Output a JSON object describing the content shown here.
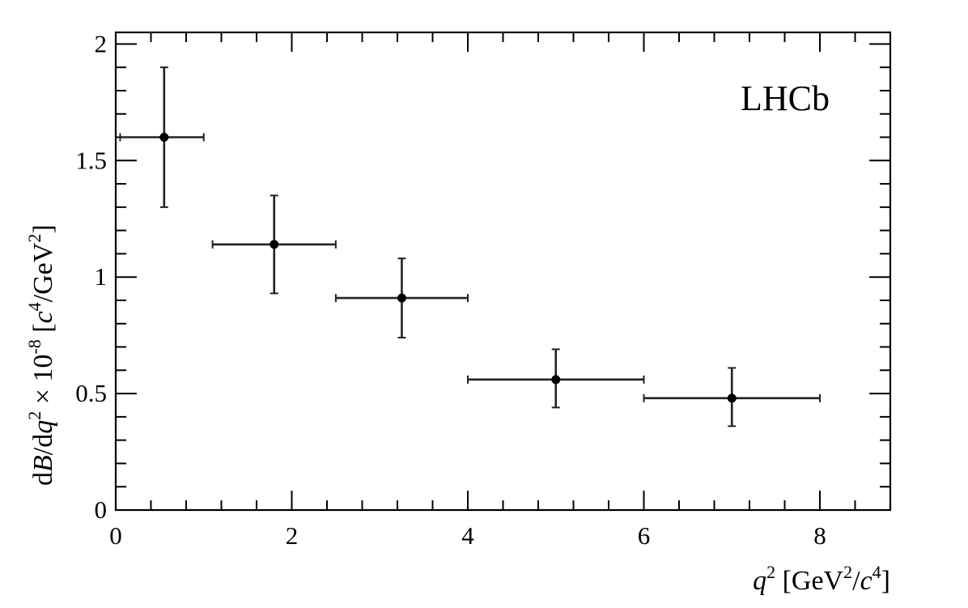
{
  "chart_data": {
    "type": "scatter",
    "experiment_label": "LHCb",
    "xlabel": {
      "q": "q",
      "sup1": "2",
      "rest1": " [GeV",
      "sup2": "2",
      "slash": "/",
      "c": "c",
      "sup3": "4",
      "close": "]"
    },
    "ylabel": {
      "d1": "d",
      "B": "B",
      "mid": "/d",
      "q": "q",
      "sup1": "2",
      "times": " × 10",
      "sup2": "-8",
      "open": " [",
      "c": "c",
      "sup3": "4",
      "rest": "/GeV",
      "sup4": "2",
      "close": "]"
    },
    "xlim": [
      0,
      8.8
    ],
    "ylim": [
      0,
      2.05
    ],
    "x_ticks": [
      0,
      2,
      4,
      6,
      8
    ],
    "x_tick_labels": [
      "0",
      "2",
      "4",
      "6",
      "8"
    ],
    "y_ticks": [
      0,
      0.5,
      1,
      1.5,
      2
    ],
    "y_tick_labels": [
      "0",
      "0.5",
      "1",
      "1.5",
      "2"
    ],
    "points": [
      {
        "x": 0.55,
        "y": 1.6,
        "xlow": 0.05,
        "xhigh": 1.0,
        "ylow": 1.3,
        "yhigh": 1.9
      },
      {
        "x": 1.8,
        "y": 1.14,
        "xlow": 1.1,
        "xhigh": 2.5,
        "ylow": 0.93,
        "yhigh": 1.35
      },
      {
        "x": 3.25,
        "y": 0.91,
        "xlow": 2.5,
        "xhigh": 4.0,
        "ylow": 0.74,
        "yhigh": 1.08
      },
      {
        "x": 5.0,
        "y": 0.56,
        "xlow": 4.0,
        "xhigh": 6.0,
        "ylow": 0.44,
        "yhigh": 0.69
      },
      {
        "x": 7.0,
        "y": 0.48,
        "xlow": 6.0,
        "xhigh": 8.0,
        "ylow": 0.36,
        "yhigh": 0.61
      }
    ],
    "grid": false,
    "legend": "none"
  }
}
